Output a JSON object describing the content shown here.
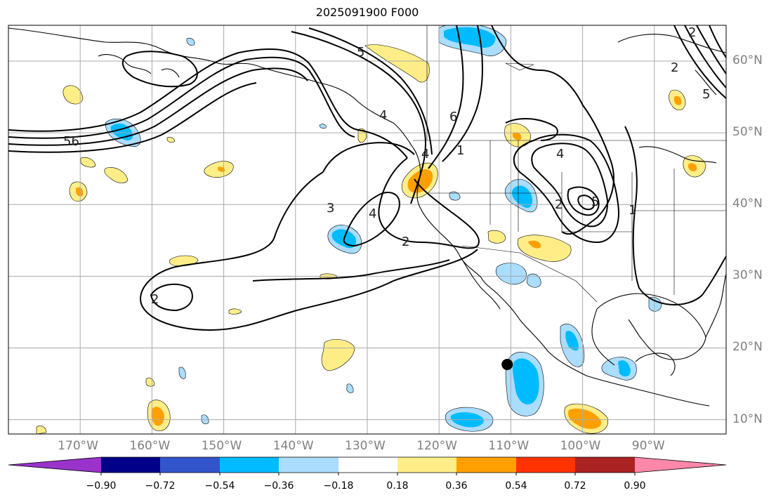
{
  "title": "2025091900 F000",
  "projection": {
    "lon_range": [
      -180,
      -80
    ],
    "lat_range": [
      8,
      65
    ]
  },
  "longitude_labels": [
    "170°W",
    "160°W",
    "150°W",
    "140°W",
    "130°W",
    "120°W",
    "110°W",
    "100°W",
    "90°W"
  ],
  "latitude_labels": [
    "60°N",
    "50°N",
    "40°N",
    "30°N",
    "20°N",
    "10°N"
  ],
  "colorbar": {
    "tick_labels": [
      "−0.90",
      "−0.72",
      "−0.54",
      "−0.36",
      "−0.18",
      "0.18",
      "0.36",
      "0.54",
      "0.72",
      "0.90"
    ],
    "colors": [
      "#9933cc",
      "#000088",
      "#3355cc",
      "#00bbff",
      "#aaddff",
      "#ffffff",
      "#ffee88",
      "#ffa000",
      "#ff3300",
      "#aa2222",
      "#ff88aa"
    ]
  },
  "colors": {
    "contour": "#000000",
    "grid": "#aaaaaa",
    "coast": "#000000"
  },
  "contour_labels": [
    "56",
    "5",
    "4",
    "6",
    "4",
    "3",
    "2",
    "4",
    "2",
    "2",
    "5",
    "1",
    "5",
    "2",
    "4",
    "1",
    "2"
  ],
  "marker": {
    "name": "black dot",
    "lon": -110.5,
    "lat": 17.7
  }
}
